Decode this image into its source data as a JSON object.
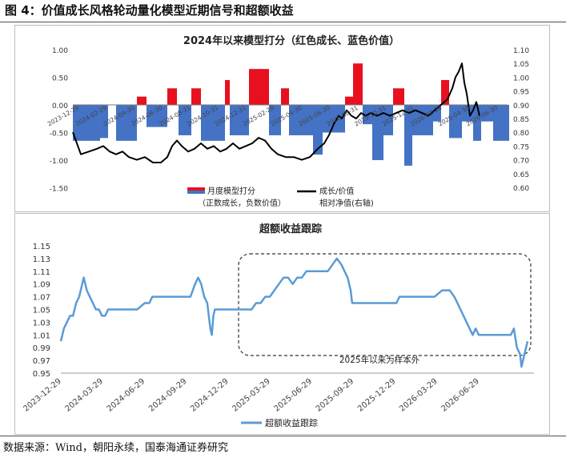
{
  "figure": {
    "title": "图  4：价值成长风格轮动量化模型近期信号和超额收益",
    "source": "数据来源：Wind，朝阳永续，国泰海通证券研究"
  },
  "colors": {
    "red": "#e8101e",
    "blue": "#4472c4",
    "black": "#000000",
    "line2": "#5b9bd5"
  },
  "chart_data": [
    {
      "type": "bar",
      "title": "2024年以来模型打分（红色成长、蓝色价值）",
      "ylim": [
        -1.5,
        1.0
      ],
      "yticks": [
        "1.00",
        "0.50",
        "0.00",
        "-0.50",
        "-1.00",
        "-1.50"
      ],
      "ylim_right": [
        0.6,
        1.1
      ],
      "yticks_right": [
        "1.10",
        "1.05",
        "1.00",
        "0.95",
        "0.90",
        "0.85",
        "0.80",
        "0.75",
        "0.70",
        "0.65",
        "0.60"
      ],
      "xticks": [
        "2023-12-29",
        "2024-02-29",
        "2024-04-30",
        "2024-06-30",
        "2024-08-31",
        "2024-10-31",
        "2024-12-31",
        "2025-02-28",
        "2025-04-30",
        "2025-06-30",
        "2025-08-31",
        "2025-10-31",
        "2025-12-31",
        "2026-02-28",
        "2026-04-30",
        "2026-06-30"
      ],
      "legend": [
        {
          "name": "月度模型打分",
          "note": "（正数成长，负数价值）"
        },
        {
          "name": "成长/价值",
          "note": "相对净值(右轴)"
        }
      ],
      "score_segments": [
        {
          "start": 0,
          "end": 34,
          "value": -0.65
        },
        {
          "start": 34,
          "end": 44,
          "value": -0.6
        },
        {
          "start": 54,
          "end": 80,
          "value": -0.65
        },
        {
          "start": 80,
          "end": 92,
          "value": 0.15
        },
        {
          "start": 92,
          "end": 118,
          "value": -0.4
        },
        {
          "start": 118,
          "end": 130,
          "value": 0.3
        },
        {
          "start": 132,
          "end": 148,
          "value": -0.55
        },
        {
          "start": 148,
          "end": 160,
          "value": 0.3
        },
        {
          "start": 160,
          "end": 190,
          "value": -0.65
        },
        {
          "start": 190,
          "end": 196,
          "value": 0.45
        },
        {
          "start": 196,
          "end": 220,
          "value": -0.55
        },
        {
          "start": 220,
          "end": 245,
          "value": 0.65
        },
        {
          "start": 245,
          "end": 260,
          "value": -0.55
        },
        {
          "start": 260,
          "end": 270,
          "value": 0.3
        },
        {
          "start": 270,
          "end": 300,
          "value": -0.55
        },
        {
          "start": 300,
          "end": 312,
          "value": -0.9
        },
        {
          "start": 312,
          "end": 340,
          "value": -0.5
        },
        {
          "start": 340,
          "end": 350,
          "value": 0.15
        },
        {
          "start": 350,
          "end": 362,
          "value": 0.75
        },
        {
          "start": 362,
          "end": 374,
          "value": -0.35
        },
        {
          "start": 374,
          "end": 388,
          "value": -1.0
        },
        {
          "start": 388,
          "end": 400,
          "value": -0.55
        },
        {
          "start": 400,
          "end": 414,
          "value": 0.3
        },
        {
          "start": 414,
          "end": 424,
          "value": -1.1
        },
        {
          "start": 424,
          "end": 450,
          "value": -0.55
        },
        {
          "start": 450,
          "end": 460,
          "value": -0.3
        },
        {
          "start": 460,
          "end": 470,
          "value": 0.45
        },
        {
          "start": 470,
          "end": 486,
          "value": -0.6
        },
        {
          "start": 486,
          "end": 500,
          "value": -0.3
        },
        {
          "start": 500,
          "end": 510,
          "value": -0.65
        },
        {
          "start": 510,
          "end": 525,
          "value": -0.3
        },
        {
          "start": 525,
          "end": 545,
          "value": -0.65
        }
      ],
      "relative_nav": [
        [
          0,
          0.8
        ],
        [
          10,
          0.72
        ],
        [
          20,
          0.73
        ],
        [
          30,
          0.74
        ],
        [
          38,
          0.75
        ],
        [
          46,
          0.73
        ],
        [
          54,
          0.72
        ],
        [
          62,
          0.73
        ],
        [
          70,
          0.71
        ],
        [
          80,
          0.7
        ],
        [
          90,
          0.71
        ],
        [
          100,
          0.69
        ],
        [
          110,
          0.69
        ],
        [
          118,
          0.71
        ],
        [
          124,
          0.75
        ],
        [
          130,
          0.77
        ],
        [
          136,
          0.75
        ],
        [
          144,
          0.73
        ],
        [
          152,
          0.74
        ],
        [
          160,
          0.76
        ],
        [
          168,
          0.74
        ],
        [
          176,
          0.75
        ],
        [
          184,
          0.73
        ],
        [
          192,
          0.74
        ],
        [
          200,
          0.76
        ],
        [
          208,
          0.74
        ],
        [
          216,
          0.75
        ],
        [
          224,
          0.76
        ],
        [
          232,
          0.78
        ],
        [
          240,
          0.77
        ],
        [
          248,
          0.74
        ],
        [
          256,
          0.72
        ],
        [
          266,
          0.71
        ],
        [
          276,
          0.71
        ],
        [
          286,
          0.7
        ],
        [
          296,
          0.71
        ],
        [
          306,
          0.74
        ],
        [
          314,
          0.76
        ],
        [
          320,
          0.79
        ],
        [
          326,
          0.83
        ],
        [
          332,
          0.86
        ],
        [
          336,
          0.85
        ],
        [
          342,
          0.88
        ],
        [
          348,
          0.86
        ],
        [
          354,
          0.85
        ],
        [
          360,
          0.87
        ],
        [
          366,
          0.86
        ],
        [
          372,
          0.87
        ],
        [
          380,
          0.86
        ],
        [
          388,
          0.87
        ],
        [
          396,
          0.86
        ],
        [
          404,
          0.87
        ],
        [
          412,
          0.88
        ],
        [
          420,
          0.87
        ],
        [
          428,
          0.88
        ],
        [
          436,
          0.87
        ],
        [
          444,
          0.86
        ],
        [
          452,
          0.88
        ],
        [
          460,
          0.9
        ],
        [
          468,
          0.92
        ],
        [
          474,
          0.96
        ],
        [
          478,
          1.0
        ],
        [
          482,
          1.02
        ],
        [
          486,
          1.05
        ],
        [
          489,
          0.98
        ],
        [
          492,
          0.94
        ],
        [
          496,
          0.86
        ],
        [
          500,
          0.88
        ],
        [
          504,
          0.91
        ],
        [
          508,
          0.86
        ]
      ]
    },
    {
      "type": "line",
      "title": "超额收益跟踪",
      "ylim": [
        0.95,
        1.15
      ],
      "yticks": [
        "1.15",
        "1.13",
        "1.11",
        "1.09",
        "1.07",
        "1.05",
        "1.03",
        "1.01",
        "0.99",
        "0.97",
        "0.95"
      ],
      "xticks": [
        "2023-12-29",
        "2024-03-29",
        "2024-06-29",
        "2024-09-29",
        "2024-12-29",
        "2025-03-29",
        "2025-06-29",
        "2025-09-29",
        "2025-12-29",
        "2026-03-29",
        "2026-06-29"
      ],
      "annotation": "2025年以来为样本外",
      "series": [
        {
          "name": "超额收益跟踪",
          "points": [
            [
              0,
              1.0
            ],
            [
              2,
              1.02
            ],
            [
              4,
              1.03
            ],
            [
              6,
              1.04
            ],
            [
              8,
              1.04
            ],
            [
              10,
              1.06
            ],
            [
              12,
              1.07
            ],
            [
              14,
              1.09
            ],
            [
              15,
              1.1
            ],
            [
              17,
              1.08
            ],
            [
              19,
              1.07
            ],
            [
              21,
              1.06
            ],
            [
              23,
              1.05
            ],
            [
              25,
              1.05
            ],
            [
              27,
              1.04
            ],
            [
              29,
              1.04
            ],
            [
              31,
              1.05
            ],
            [
              33,
              1.05
            ],
            [
              35,
              1.05
            ],
            [
              45,
              1.05
            ],
            [
              50,
              1.05
            ],
            [
              55,
              1.06
            ],
            [
              58,
              1.06
            ],
            [
              60,
              1.07
            ],
            [
              65,
              1.07
            ],
            [
              75,
              1.07
            ],
            [
              80,
              1.07
            ],
            [
              85,
              1.07
            ],
            [
              88,
              1.09
            ],
            [
              90,
              1.1
            ],
            [
              92,
              1.09
            ],
            [
              94,
              1.07
            ],
            [
              96,
              1.06
            ],
            [
              97,
              1.04
            ],
            [
              98,
              1.02
            ],
            [
              99,
              1.01
            ],
            [
              100,
              1.04
            ],
            [
              101,
              1.05
            ],
            [
              103,
              1.05
            ],
            [
              110,
              1.05
            ],
            [
              118,
              1.05
            ],
            [
              125,
              1.05
            ],
            [
              128,
              1.06
            ],
            [
              131,
              1.06
            ],
            [
              134,
              1.07
            ],
            [
              137,
              1.07
            ],
            [
              140,
              1.08
            ],
            [
              143,
              1.09
            ],
            [
              146,
              1.1
            ],
            [
              149,
              1.1
            ],
            [
              152,
              1.09
            ],
            [
              155,
              1.1
            ],
            [
              158,
              1.1
            ],
            [
              161,
              1.11
            ],
            [
              164,
              1.11
            ],
            [
              170,
              1.11
            ],
            [
              175,
              1.11
            ],
            [
              178,
              1.12
            ],
            [
              181,
              1.13
            ],
            [
              184,
              1.12
            ],
            [
              186,
              1.11
            ],
            [
              188,
              1.1
            ],
            [
              190,
              1.08
            ],
            [
              191,
              1.06
            ],
            [
              195,
              1.06
            ],
            [
              205,
              1.06
            ],
            [
              215,
              1.06
            ],
            [
              220,
              1.06
            ],
            [
              222,
              1.07
            ],
            [
              226,
              1.07
            ],
            [
              230,
              1.07
            ],
            [
              235,
              1.07
            ],
            [
              240,
              1.07
            ],
            [
              245,
              1.07
            ],
            [
              250,
              1.08
            ],
            [
              255,
              1.08
            ],
            [
              258,
              1.07
            ],
            [
              260,
              1.06
            ],
            [
              262,
              1.05
            ],
            [
              264,
              1.04
            ],
            [
              266,
              1.03
            ],
            [
              268,
              1.02
            ],
            [
              270,
              1.01
            ],
            [
              272,
              1.02
            ],
            [
              274,
              1.01
            ],
            [
              275,
              1.01
            ],
            [
              285,
              1.01
            ],
            [
              295,
              1.01
            ],
            [
              297,
              1.02
            ],
            [
              299,
              0.99
            ],
            [
              301,
              0.98
            ],
            [
              302,
              0.96
            ],
            [
              304,
              0.98
            ],
            [
              306,
              1.0
            ]
          ]
        }
      ]
    }
  ]
}
